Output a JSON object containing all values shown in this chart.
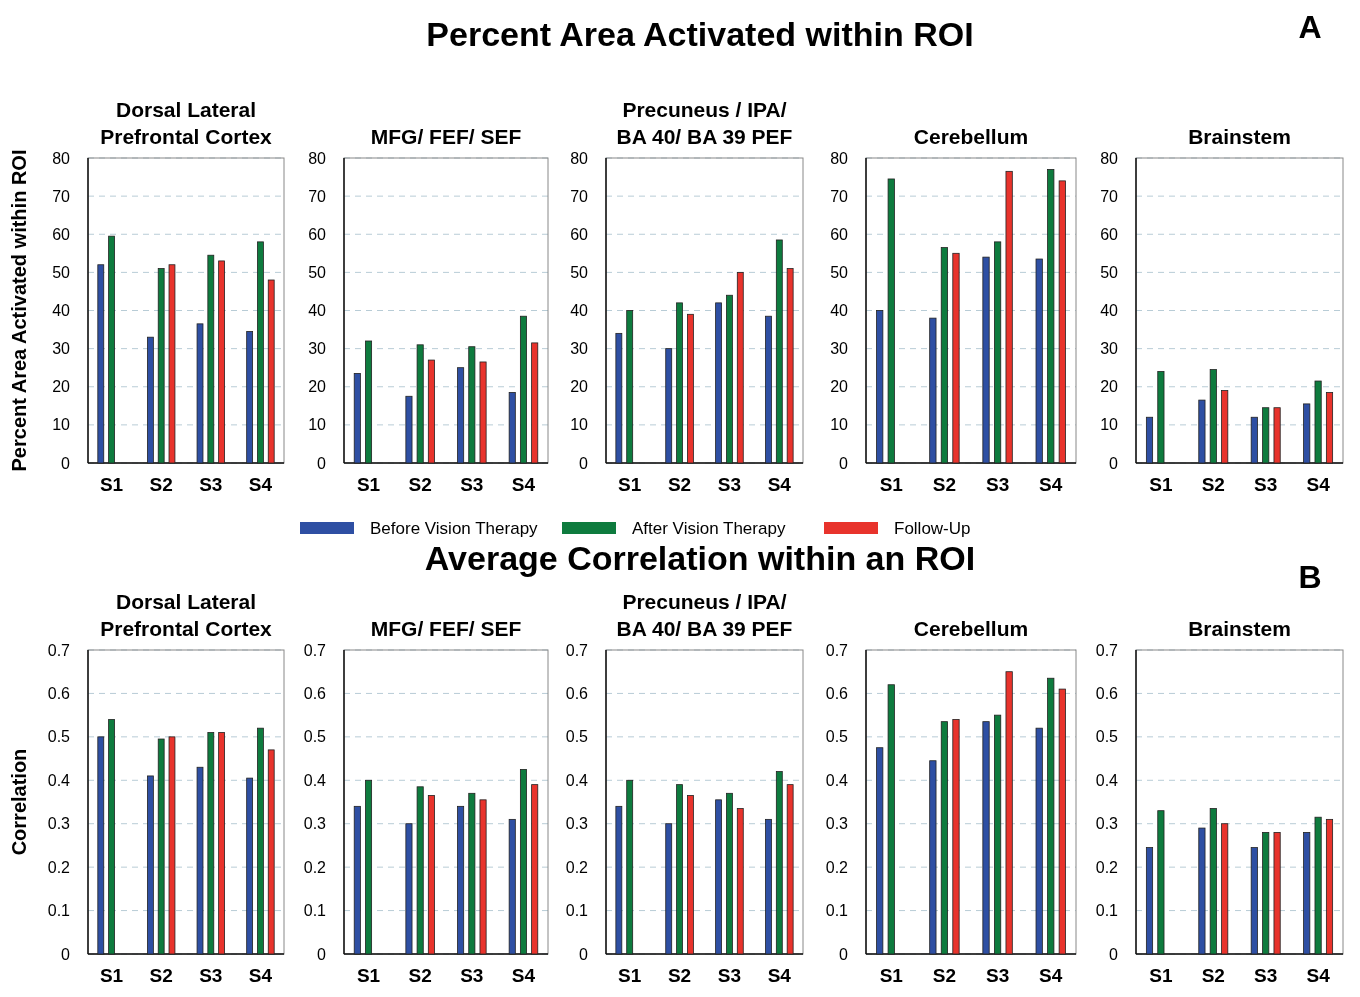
{
  "chart_data": [
    {
      "type": "bar",
      "title": "Dorsal Lateral\nPrefrontal Cortex",
      "ylabel": "Percent Area Activated within ROI",
      "annotations": [
        "Percent Area Activated within ROI",
        "A"
      ],
      "categories": [
        "S1",
        "S2",
        "S3",
        "S4"
      ],
      "ylim": [
        0,
        80
      ],
      "yticks": [
        0,
        10,
        20,
        30,
        40,
        50,
        60,
        70,
        80
      ],
      "grid": "y",
      "series": [
        {
          "color": "#2e4fa3",
          "values": [
            52,
            33,
            36.5,
            34.5
          ]
        },
        {
          "color": "#0e7b3e",
          "values": [
            59.5,
            51,
            54.5,
            58
          ]
        },
        {
          "color": "#e8332c",
          "values": [
            null,
            52,
            53,
            48
          ]
        }
      ]
    },
    {
      "type": "bar",
      "title": "MFG/ FEF/ SEF",
      "categories": [
        "S1",
        "S2",
        "S3",
        "S4"
      ],
      "ylim": [
        0,
        80
      ],
      "yticks": [
        0,
        10,
        20,
        30,
        40,
        50,
        60,
        70,
        80
      ],
      "grid": "y",
      "series": [
        {
          "color": "#2e4fa3",
          "values": [
            23.5,
            17.5,
            25,
            18.5
          ]
        },
        {
          "color": "#0e7b3e",
          "values": [
            32,
            31,
            30.5,
            38.5
          ]
        },
        {
          "color": "#e8332c",
          "values": [
            null,
            27,
            26.5,
            31.5
          ]
        }
      ]
    },
    {
      "type": "bar",
      "title": "Precuneus / IPA/\nBA 40/ BA 39  PEF",
      "categories": [
        "S1",
        "S2",
        "S3",
        "S4"
      ],
      "ylim": [
        0,
        80
      ],
      "yticks": [
        0,
        10,
        20,
        30,
        40,
        50,
        60,
        70,
        80
      ],
      "grid": "y",
      "legend": "bottom",
      "series": [
        {
          "name": "Before Vision Therapy",
          "color": "#2e4fa3",
          "values": [
            34,
            30,
            42,
            38.5
          ]
        },
        {
          "name": "After Vision Therapy",
          "color": "#0e7b3e",
          "values": [
            40,
            42,
            44,
            58.5
          ]
        },
        {
          "name": "Follow-Up",
          "color": "#e8332c",
          "values": [
            null,
            39,
            50,
            51
          ]
        }
      ]
    },
    {
      "type": "bar",
      "title": "Cerebellum",
      "categories": [
        "S1",
        "S2",
        "S3",
        "S4"
      ],
      "ylim": [
        0,
        80
      ],
      "yticks": [
        0,
        10,
        20,
        30,
        40,
        50,
        60,
        70,
        80
      ],
      "grid": "y",
      "series": [
        {
          "color": "#2e4fa3",
          "values": [
            40,
            38,
            54,
            53.5
          ]
        },
        {
          "color": "#0e7b3e",
          "values": [
            74.5,
            56.5,
            58,
            77
          ]
        },
        {
          "color": "#e8332c",
          "values": [
            null,
            55,
            76.5,
            74
          ]
        }
      ]
    },
    {
      "type": "bar",
      "title": "Brainstem",
      "categories": [
        "S1",
        "S2",
        "S3",
        "S4"
      ],
      "ylim": [
        0,
        80
      ],
      "yticks": [
        0,
        10,
        20,
        30,
        40,
        50,
        60,
        70,
        80
      ],
      "grid": "y",
      "series": [
        {
          "color": "#2e4fa3",
          "values": [
            12,
            16.5,
            12,
            15.5
          ]
        },
        {
          "color": "#0e7b3e",
          "values": [
            24,
            24.5,
            14.5,
            21.5
          ]
        },
        {
          "color": "#e8332c",
          "values": [
            null,
            19,
            14.5,
            18.5
          ]
        }
      ]
    },
    {
      "type": "bar",
      "title": "Dorsal Lateral\nPrefrontal Cortex",
      "ylabel": "Correlation",
      "annotations": [
        "Average Correlation within an ROI",
        "B"
      ],
      "categories": [
        "S1",
        "S2",
        "S3",
        "S4"
      ],
      "ylim": [
        0,
        0.7
      ],
      "yticks": [
        0,
        0.1,
        0.2,
        0.3,
        0.4,
        0.5,
        0.6,
        0.7
      ],
      "grid": "y",
      "series": [
        {
          "color": "#2e4fa3",
          "values": [
            0.5,
            0.41,
            0.43,
            0.405
          ]
        },
        {
          "color": "#0e7b3e",
          "values": [
            0.54,
            0.495,
            0.51,
            0.52
          ]
        },
        {
          "color": "#e8332c",
          "values": [
            null,
            0.5,
            0.51,
            0.47
          ]
        }
      ]
    },
    {
      "type": "bar",
      "title": "MFG/ FEF/ SEF",
      "categories": [
        "S1",
        "S2",
        "S3",
        "S4"
      ],
      "ylim": [
        0,
        0.7
      ],
      "yticks": [
        0,
        0.1,
        0.2,
        0.3,
        0.4,
        0.5,
        0.6,
        0.7
      ],
      "grid": "y",
      "series": [
        {
          "color": "#2e4fa3",
          "values": [
            0.34,
            0.3,
            0.34,
            0.31
          ]
        },
        {
          "color": "#0e7b3e",
          "values": [
            0.4,
            0.385,
            0.37,
            0.425
          ]
        },
        {
          "color": "#e8332c",
          "values": [
            null,
            0.365,
            0.355,
            0.39
          ]
        }
      ]
    },
    {
      "type": "bar",
      "title": "Precuneus / IPA/\nBA 40/ BA 39  PEF",
      "categories": [
        "S1",
        "S2",
        "S3",
        "S4"
      ],
      "ylim": [
        0,
        0.7
      ],
      "yticks": [
        0,
        0.1,
        0.2,
        0.3,
        0.4,
        0.5,
        0.6,
        0.7
      ],
      "grid": "y",
      "series": [
        {
          "color": "#2e4fa3",
          "values": [
            0.34,
            0.3,
            0.355,
            0.31
          ]
        },
        {
          "color": "#0e7b3e",
          "values": [
            0.4,
            0.39,
            0.37,
            0.42
          ]
        },
        {
          "color": "#e8332c",
          "values": [
            null,
            0.365,
            0.335,
            0.39
          ]
        }
      ]
    },
    {
      "type": "bar",
      "title": "Cerebellum",
      "categories": [
        "S1",
        "S2",
        "S3",
        "S4"
      ],
      "ylim": [
        0,
        0.7
      ],
      "yticks": [
        0,
        0.1,
        0.2,
        0.3,
        0.4,
        0.5,
        0.6,
        0.7
      ],
      "grid": "y",
      "series": [
        {
          "color": "#2e4fa3",
          "values": [
            0.475,
            0.445,
            0.535,
            0.52
          ]
        },
        {
          "color": "#0e7b3e",
          "values": [
            0.62,
            0.535,
            0.55,
            0.635
          ]
        },
        {
          "color": "#e8332c",
          "values": [
            null,
            0.54,
            0.65,
            0.61
          ]
        }
      ]
    },
    {
      "type": "bar",
      "title": "Brainstem",
      "categories": [
        "S1",
        "S2",
        "S3",
        "S4"
      ],
      "ylim": [
        0,
        0.7
      ],
      "yticks": [
        0,
        0.1,
        0.2,
        0.3,
        0.4,
        0.5,
        0.6,
        0.7
      ],
      "grid": "y",
      "series": [
        {
          "color": "#2e4fa3",
          "values": [
            0.245,
            0.29,
            0.245,
            0.28
          ]
        },
        {
          "color": "#0e7b3e",
          "values": [
            0.33,
            0.335,
            0.28,
            0.315
          ]
        },
        {
          "color": "#e8332c",
          "values": [
            null,
            0.3,
            0.28,
            0.31
          ]
        }
      ]
    }
  ]
}
